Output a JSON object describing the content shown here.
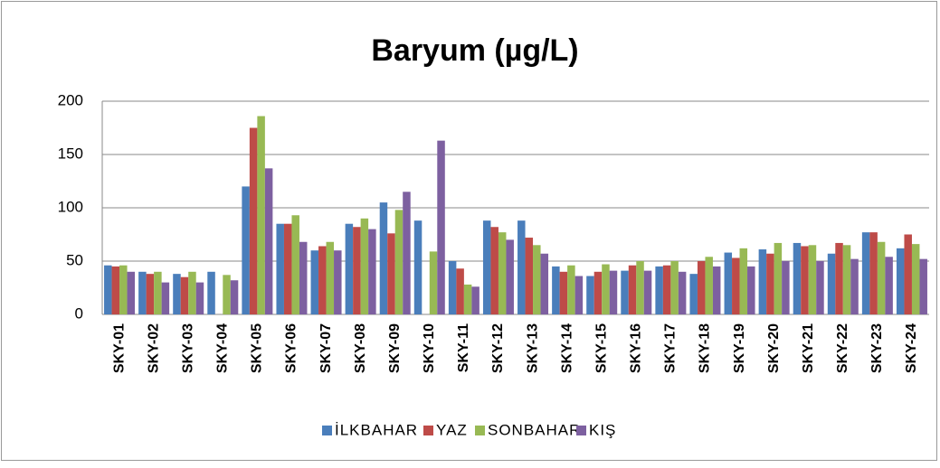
{
  "chart_data": {
    "type": "bar",
    "title": "Baryum (µg/L)",
    "categories": [
      "SKY-01",
      "SKY-02",
      "SKY-03",
      "SKY-04",
      "SKY-05",
      "SKY-06",
      "SKY-07",
      "SKY-08",
      "SKY-09",
      "SKY-10",
      "SKY-11",
      "SKY-12",
      "SKY-13",
      "SKY-14",
      "SKY-15",
      "SKY-16",
      "SKY-17",
      "SKY-18",
      "SKY-19",
      "SKY-20",
      "SKY-21",
      "SKY-22",
      "SKY-23",
      "SKY-24"
    ],
    "series": [
      {
        "name": "İLKBAHAR",
        "color": "#4a7ebb",
        "values": [
          46,
          40,
          38,
          40,
          120,
          85,
          60,
          85,
          105,
          88,
          50,
          88,
          88,
          45,
          36,
          41,
          45,
          38,
          58,
          61,
          67,
          57,
          77,
          62
        ]
      },
      {
        "name": "YAZ",
        "color": "#be4b48",
        "values": [
          45,
          38,
          35,
          null,
          175,
          85,
          64,
          82,
          76,
          null,
          43,
          82,
          72,
          40,
          40,
          46,
          46,
          50,
          53,
          57,
          64,
          67,
          77,
          75
        ]
      },
      {
        "name": "SONBAHAR",
        "color": "#98b954",
        "values": [
          46,
          40,
          40,
          37,
          186,
          93,
          68,
          90,
          98,
          59,
          28,
          77,
          65,
          46,
          47,
          50,
          50,
          54,
          62,
          67,
          65,
          65,
          68,
          66
        ]
      },
      {
        "name": "KIŞ",
        "color": "#7d60a0",
        "values": [
          40,
          30,
          30,
          32,
          137,
          68,
          60,
          80,
          115,
          163,
          26,
          70,
          57,
          36,
          41,
          41,
          40,
          45,
          45,
          50,
          50,
          52,
          54,
          52
        ]
      }
    ],
    "ylim": [
      0,
      200
    ],
    "yticks": [
      0,
      50,
      100,
      150,
      200
    ],
    "grid": true,
    "legend": "bottom"
  }
}
